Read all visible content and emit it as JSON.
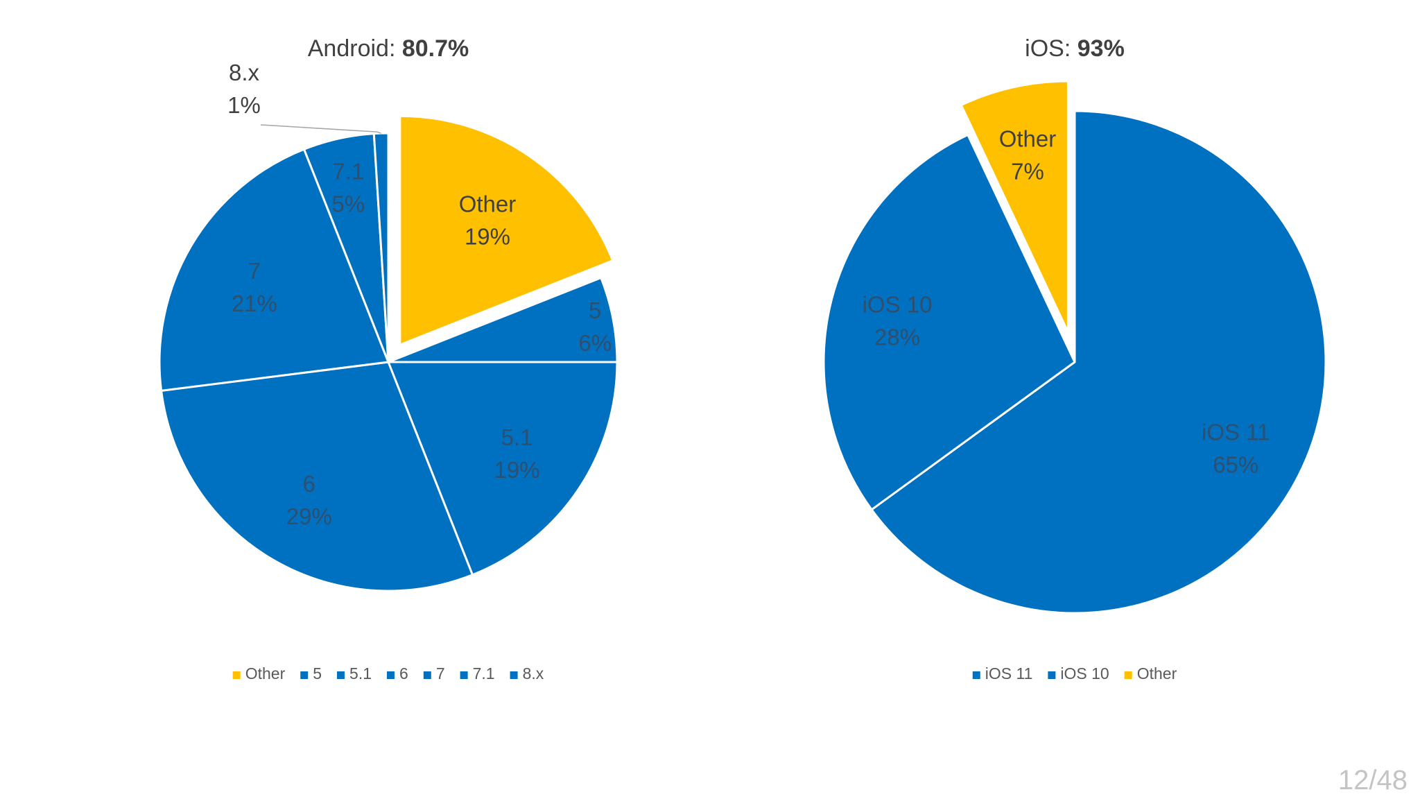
{
  "slide": {
    "page_label": "12/48"
  },
  "colors": {
    "blue": "#0070C0",
    "yellow": "#FFC000",
    "label_dark": "#404040",
    "background": "#ffffff"
  },
  "chart_data": [
    {
      "type": "pie",
      "title_prefix": "Android: ",
      "title_value": "80.7%",
      "slices": [
        {
          "name": "Other",
          "value": 19,
          "label": "19%",
          "color": "#FFC000",
          "exploded": true
        },
        {
          "name": "5",
          "value": 6,
          "label": "6%",
          "color": "#0070C0"
        },
        {
          "name": "5.1",
          "value": 19,
          "label": "19%",
          "color": "#0070C0"
        },
        {
          "name": "6",
          "value": 29,
          "label": "29%",
          "color": "#0070C0"
        },
        {
          "name": "7",
          "value": 21,
          "label": "21%",
          "color": "#0070C0"
        },
        {
          "name": "7.1",
          "value": 5,
          "label": "5%",
          "color": "#0070C0"
        },
        {
          "name": "8.x",
          "value": 1,
          "label": "1%",
          "color": "#0070C0",
          "outside_label": true
        }
      ],
      "legend": [
        "Other",
        "5",
        "5.1",
        "6",
        "7",
        "7.1",
        "8.x"
      ],
      "legend_position": "bottom"
    },
    {
      "type": "pie",
      "title_prefix": "iOS: ",
      "title_value": "93%",
      "slices": [
        {
          "name": "iOS 11",
          "value": 65,
          "label": "65%",
          "color": "#0070C0"
        },
        {
          "name": "iOS 10",
          "value": 28,
          "label": "28%",
          "color": "#0070C0"
        },
        {
          "name": "Other",
          "value": 7,
          "label": "7%",
          "color": "#FFC000",
          "exploded": true
        }
      ],
      "legend": [
        "iOS 11",
        "iOS 10",
        "Other"
      ],
      "legend_position": "bottom"
    }
  ]
}
